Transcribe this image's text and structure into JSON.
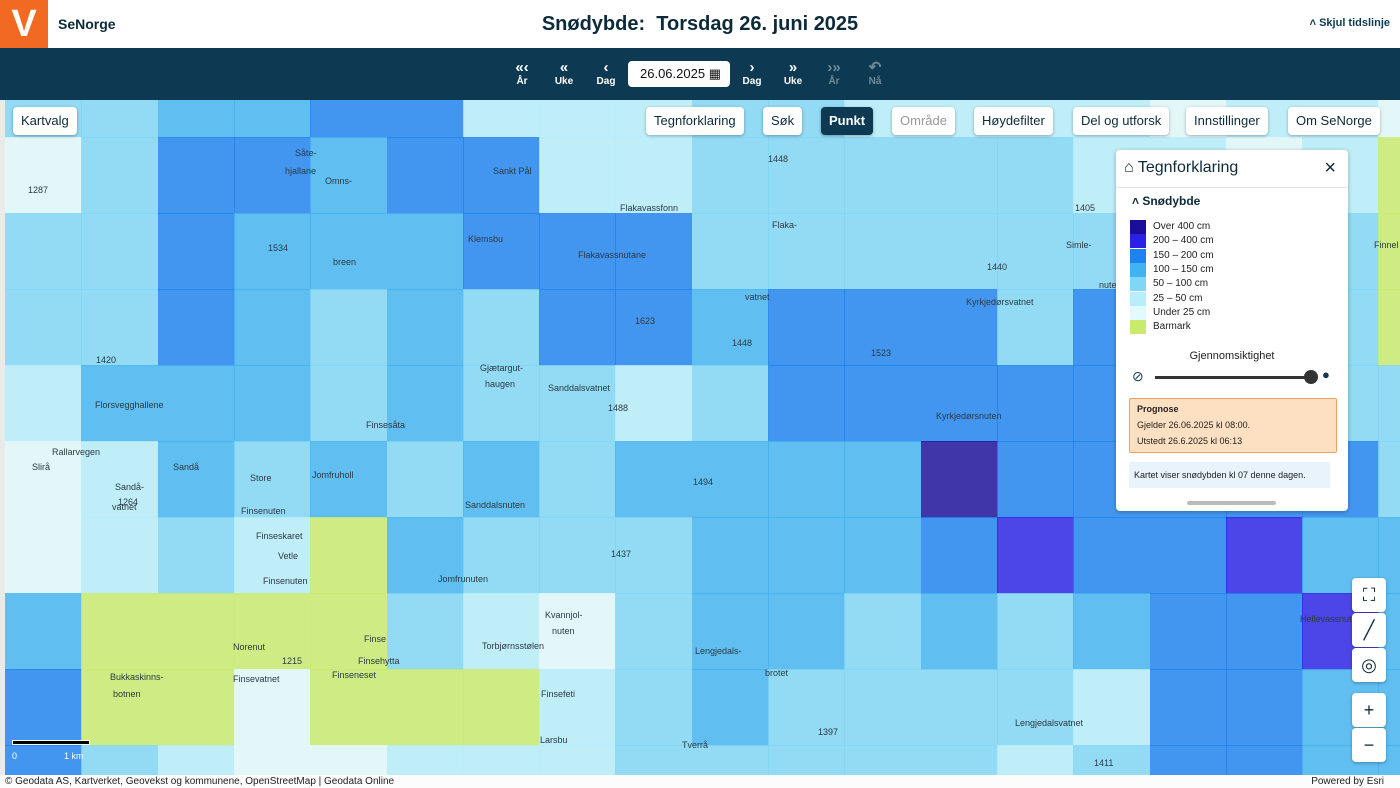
{
  "header": {
    "logo": "V",
    "app_name": "SeNorge",
    "title": "Snødybde:  Torsdag 26. juni 2025",
    "toggle": "Skjul tidslinje"
  },
  "timeline": {
    "back": [
      {
        "icon": "«‹",
        "label": "År"
      },
      {
        "icon": "«",
        "label": "Uke"
      },
      {
        "icon": "‹",
        "label": "Dag"
      }
    ],
    "date": "26.06.2025",
    "forward": [
      {
        "icon": "›",
        "label": "Dag"
      },
      {
        "icon": "»",
        "label": "Uke"
      },
      {
        "icon": "›»",
        "label": "År"
      },
      {
        "icon": "↶",
        "label": "Nå"
      }
    ]
  },
  "toolbar": {
    "left": "Kartvalg",
    "right": [
      "Tegnforklaring",
      "Søk",
      "Punkt",
      "Område",
      "Høydefilter",
      "Del og utforsk",
      "Innstillinger",
      "Om SeNorge"
    ]
  },
  "legend": {
    "title": "Tegnforklaring",
    "close": "×",
    "section": "Snødybde",
    "items": [
      {
        "label": "Over 400 cm",
        "color": "#1a0d9c"
      },
      {
        "label": "200 – 400 cm",
        "color": "#2a20e6"
      },
      {
        "label": "150 – 200 cm",
        "color": "#1f82f0"
      },
      {
        "label": "100 – 150 cm",
        "color": "#42b3f2"
      },
      {
        "label": "50 – 100 cm",
        "color": "#80d6f6"
      },
      {
        "label": "25 – 50 cm",
        "color": "#b6eefb"
      },
      {
        "label": "Under 25 cm",
        "color": "#e2f9fd"
      },
      {
        "label": "Barmark",
        "color": "#c9ea6c"
      }
    ],
    "opacity_label": "Gjennomsiktighet",
    "forecast": {
      "title": "Prognose",
      "valid": "Gjelder 26.06.2025 kl 08:00.",
      "issued": "Utstedt 26.6.2025 kl 06:13"
    },
    "note": "Kartet viser snødybden kl 07 denne dagen."
  },
  "map_labels": [
    "Såte-",
    "hjallane",
    "Omns-",
    "breen",
    "Sankt Pål",
    "Flakavassfonn",
    "Klemsbu",
    "Flakavassnutane",
    "Flaka-",
    "vatnet",
    "Kyrkjedørsvatnet",
    "Kyrkjedørsnuten",
    "Gjætargut-",
    "haugen",
    "Sanddalsvatnet",
    "Finsesåta",
    "Florsvegghallene",
    "Rallarvegen",
    "Slirå",
    "Sandå",
    "Sandå-",
    "vatnet",
    "Store",
    "Finsenuten",
    "Jomfruholl",
    "Finseskaret",
    "Vetle",
    "Finsenuten",
    "Jomfrunuten",
    "Sanddalsnuten",
    "Kvannjol-",
    "nuten",
    "Finse",
    "Finsehytta",
    "Finseneset",
    "Norenut",
    "Bukkaskinns-",
    "botnen",
    "Finsevatnet",
    "Torbjørnsstølen",
    "Lengjedals-",
    "brotet",
    "Finsefeti",
    "Lengjedalsvatnet",
    "Hellevassnuten",
    "Simle-",
    "nuten",
    "Finnel",
    "Larsbu",
    "Tverrå",
    "1448",
    "1440",
    "1405",
    "1287",
    "1534",
    "1623",
    "1448",
    "1523",
    "1420",
    "1488",
    "1264",
    "1494",
    "1437",
    "1215",
    "1397",
    "1411"
  ],
  "scale": {
    "start": "0",
    "end": "1 km"
  },
  "footer": {
    "attribution": "Geodata AS, Kartverket, Geovekst og kommunene, OpenStreetMap | Geodata Online",
    "powered": "Powered by Esri"
  }
}
